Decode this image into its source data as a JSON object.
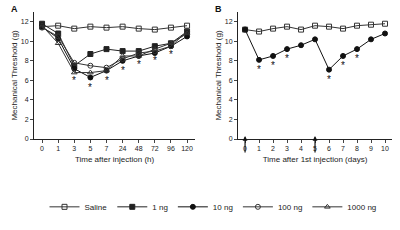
{
  "chart_data": [
    {
      "type": "line",
      "title": "A",
      "x_label": "Time after injection (h)",
      "y_label": "Mechanical Threshold (g)",
      "categories": [
        "0",
        "1",
        "3",
        "5",
        "7",
        "24",
        "48",
        "72",
        "96",
        "120"
      ],
      "series": [
        {
          "name": "Saline",
          "color": "#333333",
          "marker": "square-open",
          "values": [
            11.5,
            11.6,
            11.3,
            11.5,
            11.4,
            11.5,
            11.3,
            11.2,
            11.4,
            11.6
          ]
        },
        {
          "name": "1 ng",
          "color": "#222222",
          "marker": "square",
          "values": [
            11.8,
            10.8,
            7.5,
            8.7,
            9.2,
            9.0,
            9.0,
            9.5,
            9.8,
            11.0
          ]
        },
        {
          "name": "10 ng",
          "color": "#111111",
          "marker": "circle",
          "values": [
            11.5,
            10.3,
            7.2,
            6.3,
            7.0,
            8.0,
            8.5,
            8.8,
            9.5,
            10.5
          ]
        },
        {
          "name": "100 ng",
          "color": "#333333",
          "marker": "circle-open",
          "values": [
            11.4,
            10.5,
            7.8,
            7.5,
            7.3,
            8.2,
            8.8,
            9.0,
            9.5,
            11.0
          ]
        },
        {
          "name": "1000 ng",
          "color": "#333333",
          "marker": "triangle-up-open",
          "values": [
            11.6,
            9.8,
            6.8,
            6.8,
            7.0,
            8.5,
            8.5,
            9.2,
            9.8,
            10.8
          ]
        }
      ],
      "ylim": [
        0,
        13
      ],
      "yticks": [
        0,
        2,
        4,
        6,
        8,
        10,
        12
      ],
      "annotations": [
        {
          "x": 2,
          "y": 6.0,
          "text": "*"
        },
        {
          "x": 3,
          "y": 5.3,
          "text": "*"
        },
        {
          "x": 4,
          "y": 6.0,
          "text": "*"
        },
        {
          "x": 5,
          "y": 7.0,
          "text": "*"
        },
        {
          "x": 6,
          "y": 7.6,
          "text": "*"
        },
        {
          "x": 7,
          "y": 8.0,
          "text": "*"
        },
        {
          "x": 8,
          "y": 8.6,
          "text": "*"
        }
      ],
      "legend": "bottom",
      "grid": false
    },
    {
      "type": "line",
      "title": "B",
      "x_label": "Time after 1st injection (days)",
      "y_label": "Mechanical Threshold (g)",
      "x": [
        0,
        1,
        2,
        3,
        4,
        5,
        6,
        7,
        8,
        9,
        10
      ],
      "series": [
        {
          "name": "Saline",
          "color": "#333333",
          "marker": "square-open",
          "values": [
            11.2,
            11.0,
            11.3,
            11.5,
            11.2,
            11.6,
            11.5,
            11.3,
            11.6,
            11.7,
            11.8
          ]
        },
        {
          "name": "10 ng",
          "color": "#111111",
          "marker": "circle",
          "values": [
            11.2,
            8.1,
            8.5,
            9.2,
            9.6,
            10.2,
            7.1,
            8.5,
            9.2,
            10.2,
            10.8
          ]
        }
      ],
      "xlim": [
        -0.5,
        10.5
      ],
      "xticks": [
        0,
        1,
        2,
        3,
        4,
        5,
        6,
        7,
        8,
        9,
        10
      ],
      "ylim": [
        0,
        13
      ],
      "yticks": [
        0,
        2,
        4,
        6,
        8,
        10,
        12
      ],
      "annotations": [
        {
          "x": 1,
          "y": 7.1,
          "text": "*"
        },
        {
          "x": 2,
          "y": 7.5,
          "text": "*"
        },
        {
          "x": 3,
          "y": 8.2,
          "text": "*"
        },
        {
          "x": 6,
          "y": 6.1,
          "text": "*"
        },
        {
          "x": 7,
          "y": 7.5,
          "text": "*"
        },
        {
          "x": 8,
          "y": 8.2,
          "text": "*"
        }
      ],
      "injection_days": [
        0,
        5
      ],
      "grid": false
    }
  ]
}
